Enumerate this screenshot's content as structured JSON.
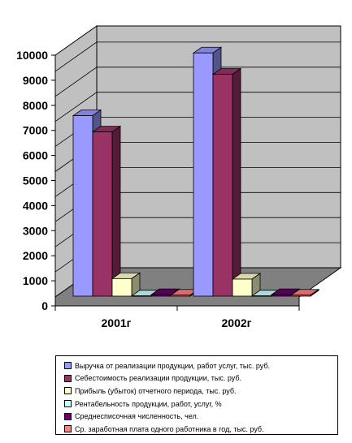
{
  "chart_data": {
    "type": "bar",
    "three_d": true,
    "categories": [
      "2001г",
      "2002г"
    ],
    "series": [
      {
        "name": "Выручка от реализации продукции, работ услуг, тыс. руб.",
        "values": [
          7200,
          9700
        ],
        "color": "#9999ff"
      },
      {
        "name": "Себестоимость реализации продукции, тыс. руб.",
        "values": [
          6550,
          8850
        ],
        "color": "#993366"
      },
      {
        "name": "Прибыль (убыток) отчетного периода, тыс. руб.",
        "values": [
          700,
          680
        ],
        "color": "#ffffcc"
      },
      {
        "name": "Рентабельность продукции, работ, услуг, %",
        "values": [
          10,
          10
        ],
        "color": "#ccffff"
      },
      {
        "name": "Среднесписочная численность, чел.",
        "values": [
          60,
          60
        ],
        "color": "#660066"
      },
      {
        "name": "Ср. заработная плата одного работника в год, тыс. руб.",
        "values": [
          40,
          40
        ],
        "color": "#ff8080"
      }
    ],
    "yticks": [
      "0",
      "1000",
      "2000",
      "3000",
      "4000",
      "5000",
      "6000",
      "7000",
      "8000",
      "9000",
      "10000"
    ],
    "ylim": [
      0,
      10000
    ],
    "grid": true,
    "legend_position": "bottom",
    "colors": {
      "wall": "#c0c0c0",
      "floor": "#808080"
    }
  }
}
